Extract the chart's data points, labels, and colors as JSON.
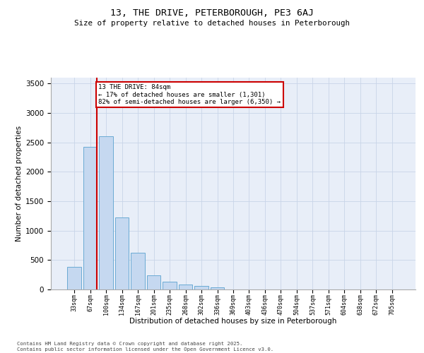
{
  "title1": "13, THE DRIVE, PETERBOROUGH, PE3 6AJ",
  "title2": "Size of property relative to detached houses in Peterborough",
  "xlabel": "Distribution of detached houses by size in Peterborough",
  "ylabel": "Number of detached properties",
  "categories": [
    "33sqm",
    "67sqm",
    "100sqm",
    "134sqm",
    "167sqm",
    "201sqm",
    "235sqm",
    "268sqm",
    "302sqm",
    "336sqm",
    "369sqm",
    "403sqm",
    "436sqm",
    "470sqm",
    "504sqm",
    "537sqm",
    "571sqm",
    "604sqm",
    "638sqm",
    "672sqm",
    "705sqm"
  ],
  "values": [
    380,
    2420,
    2600,
    1230,
    620,
    240,
    130,
    80,
    60,
    40,
    5,
    0,
    0,
    0,
    0,
    0,
    0,
    0,
    0,
    0,
    0
  ],
  "bar_color": "#c5d8f0",
  "bar_edge_color": "#6aaad4",
  "bar_edge_width": 0.7,
  "grid_color": "#c8d4e8",
  "bg_color": "#e8eef8",
  "redline_color": "#cc0000",
  "annotation_line1": "13 THE DRIVE: 84sqm",
  "annotation_line2": "← 17% of detached houses are smaller (1,301)",
  "annotation_line3": "82% of semi-detached houses are larger (6,350) →",
  "annotation_box_facecolor": "#ffffff",
  "annotation_box_edgecolor": "#cc0000",
  "ylim": [
    0,
    3600
  ],
  "yticks": [
    0,
    500,
    1000,
    1500,
    2000,
    2500,
    3000,
    3500
  ],
  "footnote1": "Contains HM Land Registry data © Crown copyright and database right 2025.",
  "footnote2": "Contains public sector information licensed under the Open Government Licence v3.0."
}
